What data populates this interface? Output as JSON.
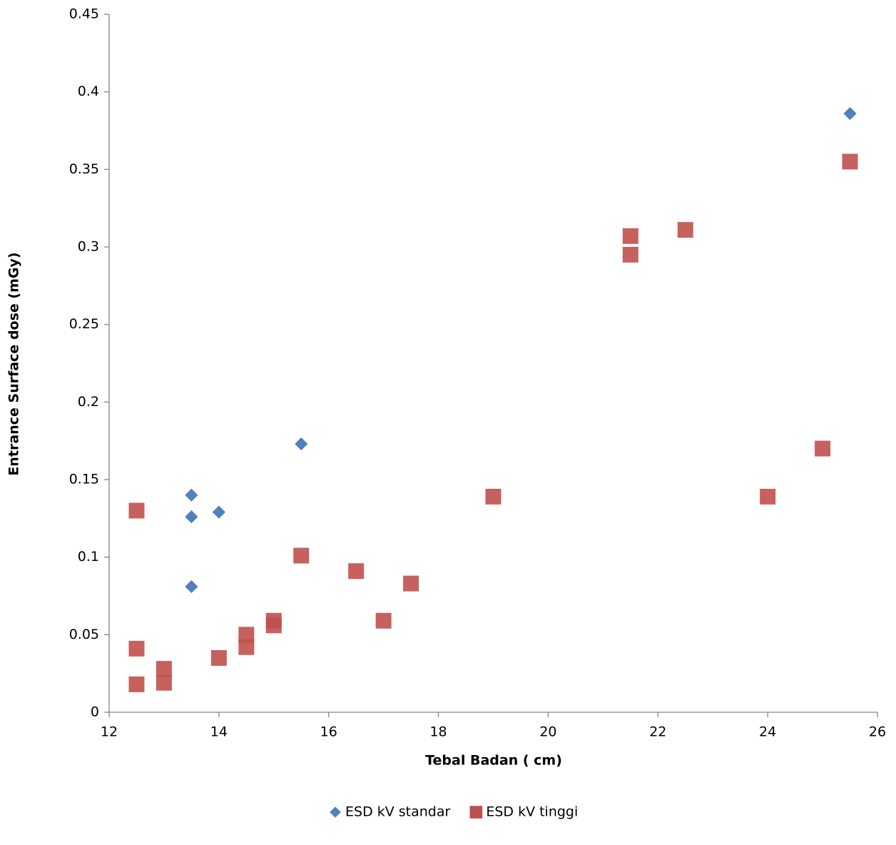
{
  "chart_data": {
    "type": "scatter",
    "x_label": "Tebal Badan ( cm)",
    "y_label": "Entrance Surface dose (mGy)",
    "xlim": [
      12,
      26
    ],
    "xticks": [
      12,
      14,
      16,
      18,
      20,
      22,
      24,
      26
    ],
    "ylim": [
      0,
      0.45
    ],
    "yticks": [
      0,
      0.05,
      0.1,
      0.15,
      0.2,
      0.25,
      0.3,
      0.35,
      0.4,
      0.45
    ],
    "legend": "bottom",
    "series": [
      {
        "name": "ESD kV standar",
        "color": "#4f81bd",
        "marker": "diamond",
        "x": [
          13.5,
          13.5,
          13.5,
          14,
          15.5,
          25.5
        ],
        "values": [
          0.14,
          0.126,
          0.081,
          0.129,
          0.173,
          0.386
        ]
      },
      {
        "name": "ESD kV tinggi",
        "color": "#c0504d",
        "marker": "square",
        "x": [
          12.5,
          12.5,
          12.5,
          13,
          13,
          14,
          14.5,
          14.5,
          15,
          15,
          15.5,
          16.5,
          17,
          17.5,
          19,
          21.5,
          21.5,
          22.5,
          24,
          25,
          25.5
        ],
        "values": [
          0.13,
          0.041,
          0.018,
          0.028,
          0.019,
          0.035,
          0.05,
          0.042,
          0.059,
          0.056,
          0.101,
          0.091,
          0.059,
          0.083,
          0.139,
          0.307,
          0.295,
          0.311,
          0.139,
          0.17,
          0.355
        ]
      }
    ]
  }
}
